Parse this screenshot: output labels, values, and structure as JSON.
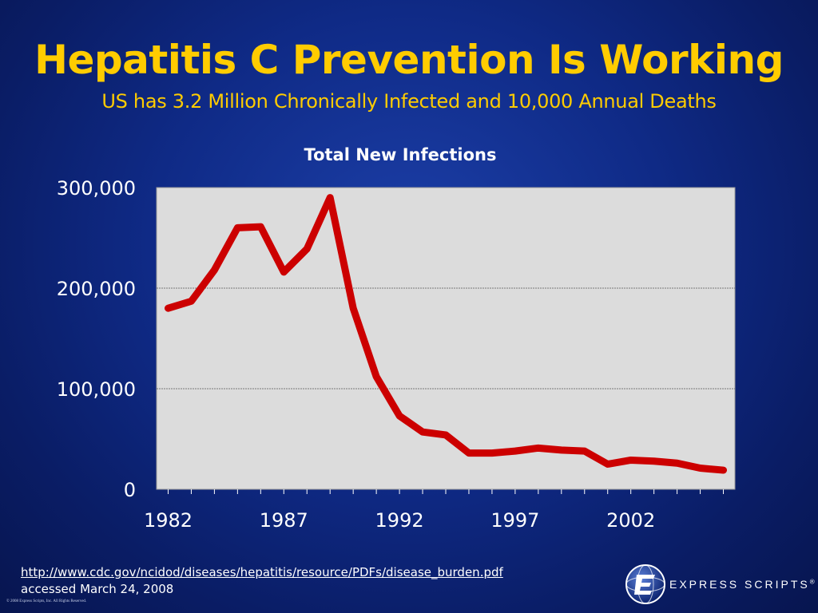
{
  "slide": {
    "title": "Hepatitis C Prevention Is Working",
    "subtitle": "US has 3.2 Million Chronically Infected and 10,000 Annual Deaths",
    "source_url": "http://www.cdc.gov/ncidod/diseases/hepatitis/resource/PDFs/disease_burden.pdf",
    "source_accessed": "accessed March 24, 2008",
    "copyright": "© 2008 Express Scripts, Inc. All Rights Reserved.",
    "logo_text": "EXPRESS SCRIPTS",
    "logo_reg": "®"
  },
  "colors": {
    "title": "#ffcc00",
    "line": "#cc0000",
    "plot_bg": "#dcdcdc",
    "text": "#ffffff"
  },
  "chart_data": {
    "type": "line",
    "title": "Total New Infections",
    "xlabel": "",
    "ylabel": "",
    "x": [
      1982,
      1983,
      1984,
      1985,
      1986,
      1987,
      1988,
      1989,
      1990,
      1991,
      1992,
      1993,
      1994,
      1995,
      1996,
      1997,
      1998,
      1999,
      2000,
      2001,
      2002,
      2003,
      2004,
      2005,
      2006
    ],
    "series": [
      {
        "values": [
          180000,
          187000,
          218000,
          260000,
          261000,
          216000,
          239000,
          290000,
          180000,
          112000,
          73000,
          57000,
          54000,
          36000,
          36000,
          38000,
          41000,
          39000,
          38000,
          25000,
          29000,
          28000,
          26000,
          21000,
          19000
        ]
      }
    ],
    "xlim": [
      1981.5,
      2006.5
    ],
    "ylim": [
      0,
      300000
    ],
    "x_ticks": [
      "1982",
      "1987",
      "1992",
      "1997",
      "2002"
    ],
    "x_tick_values": [
      1982,
      1987,
      1992,
      1997,
      2002
    ],
    "y_ticks": [
      "0",
      "100,000",
      "200,000",
      "300,000"
    ],
    "y_tick_values": [
      0,
      100000,
      200000,
      300000
    ],
    "grid": true,
    "legend": "none"
  }
}
